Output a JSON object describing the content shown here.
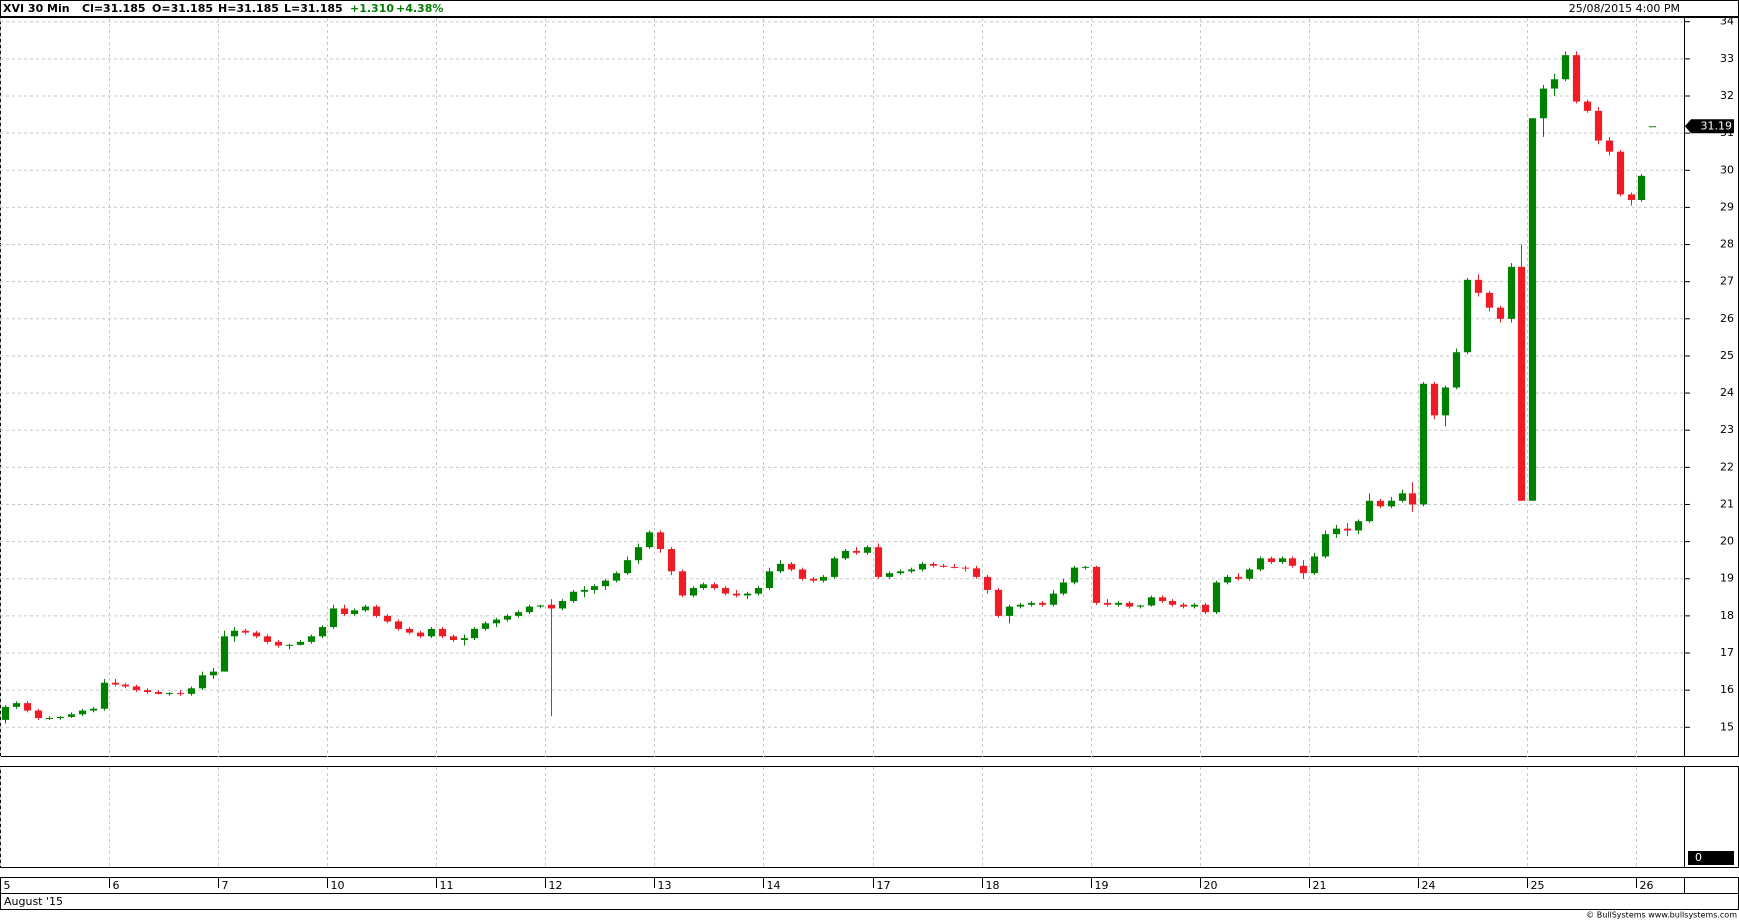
{
  "chart_data": {
    "type": "candlestick",
    "header": {
      "symbol": "XVI  30 Min",
      "close": "Cl=31.185",
      "open": "O=31.185",
      "high": "H=31.185",
      "low": "L=31.185",
      "change": "+1.310",
      "change_pct": "+4.38%",
      "date": "25/08/2015 4:00 PM"
    },
    "up_color": "#008000",
    "down_color": "#ee1c24",
    "candles": [
      [
        15.2,
        15.6,
        15.1,
        15.55
      ],
      [
        15.55,
        15.7,
        15.5,
        15.65
      ],
      [
        15.65,
        15.7,
        15.4,
        15.45
      ],
      [
        15.45,
        15.5,
        15.2,
        15.25
      ],
      [
        15.25,
        15.3,
        15.2,
        15.25
      ],
      [
        15.25,
        15.3,
        15.2,
        15.28
      ],
      [
        15.28,
        15.4,
        15.25,
        15.35
      ],
      [
        15.35,
        15.5,
        15.3,
        15.45
      ],
      [
        15.45,
        15.55,
        15.4,
        15.5
      ],
      [
        15.5,
        16.3,
        15.45,
        16.2
      ],
      [
        16.2,
        16.3,
        16.1,
        16.15
      ],
      [
        16.15,
        16.2,
        16.05,
        16.1
      ],
      [
        16.1,
        16.15,
        15.95,
        16.0
      ],
      [
        16.0,
        16.05,
        15.9,
        15.95
      ],
      [
        15.95,
        16.0,
        15.88,
        15.9
      ],
      [
        15.9,
        15.95,
        15.85,
        15.92
      ],
      [
        15.92,
        16.0,
        15.85,
        15.9
      ],
      [
        15.9,
        16.1,
        15.85,
        16.05
      ],
      [
        16.05,
        16.5,
        16.0,
        16.4
      ],
      [
        16.4,
        16.6,
        16.3,
        16.5
      ],
      [
        16.5,
        17.6,
        16.5,
        17.45
      ],
      [
        17.45,
        17.7,
        17.3,
        17.6
      ],
      [
        17.6,
        17.65,
        17.5,
        17.55
      ],
      [
        17.55,
        17.6,
        17.4,
        17.45
      ],
      [
        17.45,
        17.5,
        17.25,
        17.3
      ],
      [
        17.3,
        17.35,
        17.15,
        17.2
      ],
      [
        17.2,
        17.25,
        17.1,
        17.22
      ],
      [
        17.22,
        17.35,
        17.2,
        17.3
      ],
      [
        17.3,
        17.5,
        17.25,
        17.45
      ],
      [
        17.45,
        17.75,
        17.4,
        17.7
      ],
      [
        17.7,
        18.3,
        17.65,
        18.2
      ],
      [
        18.2,
        18.3,
        18.0,
        18.05
      ],
      [
        18.05,
        18.2,
        18.0,
        18.15
      ],
      [
        18.15,
        18.3,
        18.1,
        18.25
      ],
      [
        18.25,
        18.3,
        17.95,
        18.0
      ],
      [
        18.0,
        18.05,
        17.8,
        17.85
      ],
      [
        17.85,
        17.9,
        17.6,
        17.65
      ],
      [
        17.65,
        17.7,
        17.5,
        17.55
      ],
      [
        17.55,
        17.6,
        17.4,
        17.45
      ],
      [
        17.45,
        17.7,
        17.4,
        17.65
      ],
      [
        17.65,
        17.7,
        17.4,
        17.45
      ],
      [
        17.45,
        17.5,
        17.3,
        17.35
      ],
      [
        17.35,
        17.5,
        17.2,
        17.4
      ],
      [
        17.4,
        17.7,
        17.35,
        17.65
      ],
      [
        17.65,
        17.85,
        17.6,
        17.8
      ],
      [
        17.8,
        17.95,
        17.7,
        17.9
      ],
      [
        17.9,
        18.05,
        17.85,
        18.0
      ],
      [
        18.0,
        18.15,
        17.95,
        18.1
      ],
      [
        18.1,
        18.3,
        18.05,
        18.25
      ],
      [
        18.25,
        18.3,
        18.2,
        18.28
      ],
      [
        18.3,
        18.45,
        15.3,
        18.2
      ],
      [
        18.2,
        18.45,
        18.15,
        18.4
      ],
      [
        18.4,
        18.7,
        18.35,
        18.65
      ],
      [
        18.65,
        18.8,
        18.5,
        18.7
      ],
      [
        18.7,
        18.85,
        18.6,
        18.8
      ],
      [
        18.8,
        19.0,
        18.7,
        18.95
      ],
      [
        18.95,
        19.2,
        18.9,
        19.15
      ],
      [
        19.15,
        19.6,
        19.1,
        19.5
      ],
      [
        19.5,
        19.95,
        19.4,
        19.85
      ],
      [
        19.85,
        20.3,
        19.8,
        20.25
      ],
      [
        20.25,
        20.3,
        19.7,
        19.8
      ],
      [
        19.8,
        19.85,
        19.1,
        19.2
      ],
      [
        19.2,
        19.25,
        18.5,
        18.55
      ],
      [
        18.55,
        18.8,
        18.5,
        18.75
      ],
      [
        18.75,
        18.9,
        18.7,
        18.85
      ],
      [
        18.85,
        18.9,
        18.7,
        18.75
      ],
      [
        18.75,
        18.8,
        18.55,
        18.6
      ],
      [
        18.6,
        18.7,
        18.5,
        18.55
      ],
      [
        18.55,
        18.65,
        18.45,
        18.6
      ],
      [
        18.6,
        18.8,
        18.55,
        18.75
      ],
      [
        18.75,
        19.3,
        18.7,
        19.2
      ],
      [
        19.2,
        19.5,
        19.15,
        19.4
      ],
      [
        19.4,
        19.45,
        19.2,
        19.25
      ],
      [
        19.25,
        19.3,
        18.95,
        19.0
      ],
      [
        19.0,
        19.05,
        18.9,
        18.95
      ],
      [
        18.95,
        19.1,
        18.9,
        19.05
      ],
      [
        19.05,
        19.6,
        19.0,
        19.55
      ],
      [
        19.55,
        19.8,
        19.5,
        19.75
      ],
      [
        19.75,
        19.85,
        19.65,
        19.7
      ],
      [
        19.7,
        19.9,
        19.65,
        19.85
      ],
      [
        19.85,
        19.95,
        19.0,
        19.05
      ],
      [
        19.05,
        19.2,
        19.0,
        19.15
      ],
      [
        19.15,
        19.25,
        19.1,
        19.2
      ],
      [
        19.2,
        19.3,
        19.15,
        19.25
      ],
      [
        19.25,
        19.45,
        19.2,
        19.4
      ],
      [
        19.4,
        19.45,
        19.3,
        19.35
      ],
      [
        19.35,
        19.4,
        19.3,
        19.32
      ],
      [
        19.32,
        19.4,
        19.28,
        19.3
      ],
      [
        19.3,
        19.35,
        19.2,
        19.28
      ],
      [
        19.28,
        19.35,
        19.0,
        19.05
      ],
      [
        19.05,
        19.1,
        18.6,
        18.7
      ],
      [
        18.7,
        18.75,
        17.95,
        18.0
      ],
      [
        18.0,
        18.3,
        17.8,
        18.25
      ],
      [
        18.25,
        18.35,
        18.2,
        18.3
      ],
      [
        18.3,
        18.4,
        18.25,
        18.35
      ],
      [
        18.35,
        18.4,
        18.25,
        18.3
      ],
      [
        18.3,
        18.7,
        18.25,
        18.6
      ],
      [
        18.6,
        19.0,
        18.55,
        18.9
      ],
      [
        18.9,
        19.35,
        18.85,
        19.3
      ],
      [
        19.3,
        19.35,
        19.25,
        19.32
      ],
      [
        19.32,
        19.35,
        18.3,
        18.35
      ],
      [
        18.35,
        18.45,
        18.25,
        18.3
      ],
      [
        18.3,
        18.4,
        18.25,
        18.35
      ],
      [
        18.35,
        18.4,
        18.2,
        18.25
      ],
      [
        18.25,
        18.3,
        18.2,
        18.28
      ],
      [
        18.28,
        18.55,
        18.25,
        18.5
      ],
      [
        18.5,
        18.55,
        18.35,
        18.4
      ],
      [
        18.4,
        18.45,
        18.25,
        18.3
      ],
      [
        18.3,
        18.35,
        18.2,
        18.25
      ],
      [
        18.25,
        18.35,
        18.2,
        18.3
      ],
      [
        18.3,
        18.35,
        18.05,
        18.1
      ],
      [
        18.1,
        18.95,
        18.05,
        18.9
      ],
      [
        18.9,
        19.1,
        18.85,
        19.05
      ],
      [
        19.05,
        19.15,
        18.95,
        19.0
      ],
      [
        19.0,
        19.3,
        18.95,
        19.25
      ],
      [
        19.25,
        19.6,
        19.2,
        19.55
      ],
      [
        19.55,
        19.6,
        19.4,
        19.45
      ],
      [
        19.45,
        19.6,
        19.4,
        19.55
      ],
      [
        19.55,
        19.6,
        19.3,
        19.35
      ],
      [
        19.35,
        19.5,
        19.0,
        19.15
      ],
      [
        19.15,
        19.7,
        19.1,
        19.6
      ],
      [
        19.6,
        20.3,
        19.55,
        20.2
      ],
      [
        20.2,
        20.45,
        20.1,
        20.35
      ],
      [
        20.35,
        20.5,
        20.15,
        20.3
      ],
      [
        20.3,
        20.6,
        20.2,
        20.55
      ],
      [
        20.55,
        21.3,
        20.5,
        21.1
      ],
      [
        21.1,
        21.15,
        20.9,
        20.95
      ],
      [
        20.95,
        21.2,
        20.9,
        21.1
      ],
      [
        21.1,
        21.4,
        21.05,
        21.3
      ],
      [
        21.3,
        21.6,
        20.8,
        21.0
      ],
      [
        21.0,
        24.3,
        20.95,
        24.25
      ],
      [
        24.25,
        24.3,
        23.3,
        23.4
      ],
      [
        23.4,
        24.2,
        23.1,
        24.15
      ],
      [
        24.15,
        25.2,
        24.1,
        25.1
      ],
      [
        25.1,
        27.1,
        25.05,
        27.05
      ],
      [
        27.05,
        27.2,
        26.6,
        26.7
      ],
      [
        26.7,
        26.75,
        26.2,
        26.3
      ],
      [
        26.3,
        26.35,
        25.9,
        26.0
      ],
      [
        26.0,
        27.5,
        25.9,
        27.4
      ],
      [
        27.4,
        28.0,
        21.1,
        21.1
      ],
      [
        21.1,
        31.4,
        21.1,
        31.4
      ],
      [
        31.4,
        32.3,
        30.9,
        32.2
      ],
      [
        32.2,
        32.6,
        32.0,
        32.45
      ],
      [
        32.45,
        33.2,
        32.4,
        33.1
      ],
      [
        33.1,
        33.2,
        31.8,
        31.85
      ],
      [
        31.85,
        31.9,
        31.55,
        31.6
      ],
      [
        31.6,
        31.7,
        30.7,
        30.8
      ],
      [
        30.8,
        30.9,
        30.4,
        30.5
      ],
      [
        30.5,
        30.55,
        29.3,
        29.35
      ],
      [
        29.35,
        29.4,
        29.05,
        29.2
      ],
      [
        29.2,
        29.9,
        29.15,
        29.85
      ],
      [
        31.185,
        31.185,
        31.185,
        31.185
      ]
    ],
    "last_price": {
      "value": 31.185,
      "label": "31.19"
    },
    "xlim": [
      0,
      154.4
    ],
    "xticks": [
      {
        "value": 0,
        "label": "5"
      },
      {
        "value": 10,
        "label": "6"
      },
      {
        "value": 20,
        "label": "7"
      },
      {
        "value": 30,
        "label": "10"
      },
      {
        "value": 40,
        "label": "11"
      },
      {
        "value": 50,
        "label": "12"
      },
      {
        "value": 60,
        "label": "13"
      },
      {
        "value": 70,
        "label": "14"
      },
      {
        "value": 80,
        "label": "17"
      },
      {
        "value": 90,
        "label": "18"
      },
      {
        "value": 100,
        "label": "19"
      },
      {
        "value": 110,
        "label": "20"
      },
      {
        "value": 120,
        "label": "21"
      },
      {
        "value": 130,
        "label": "24"
      },
      {
        "value": 140,
        "label": "25"
      },
      {
        "value": 150,
        "label": "26"
      }
    ],
    "month_label": "August '15",
    "ylim": [
      14.2,
      34.1
    ],
    "yticks": [
      15,
      16,
      17,
      18,
      19,
      20,
      21,
      22,
      23,
      24,
      25,
      26,
      27,
      28,
      29,
      30,
      31,
      32,
      33,
      34
    ],
    "lower_panel_label": "0",
    "grid": true,
    "copyright": "© BullSystems www.bullsystems.com"
  }
}
